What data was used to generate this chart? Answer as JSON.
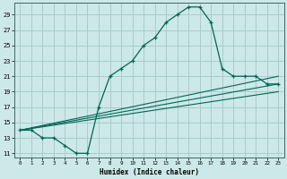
{
  "xlabel": "Humidex (Indice chaleur)",
  "bg_color": "#cce8e8",
  "grid_color": "#aacccc",
  "line_color": "#006655",
  "xlim": [
    -0.5,
    23.5
  ],
  "ylim": [
    10.5,
    30.5
  ],
  "xticks": [
    0,
    1,
    2,
    3,
    4,
    5,
    6,
    7,
    8,
    9,
    10,
    11,
    12,
    13,
    14,
    15,
    16,
    17,
    18,
    19,
    20,
    21,
    22,
    23
  ],
  "yticks": [
    11,
    13,
    15,
    17,
    19,
    21,
    23,
    25,
    27,
    29
  ],
  "main_x": [
    0,
    1,
    2,
    3,
    4,
    5,
    6,
    7,
    8,
    9,
    10,
    11,
    12,
    13,
    14,
    15,
    16,
    17,
    18,
    19,
    20,
    21,
    22,
    23
  ],
  "main_y": [
    14,
    14,
    13,
    13,
    12,
    11,
    11,
    17,
    21,
    22,
    23,
    25,
    26,
    28,
    29,
    30,
    30,
    28,
    22,
    21,
    21,
    21,
    20,
    20
  ],
  "line1_x": [
    0,
    23
  ],
  "line1_y": [
    14,
    19
  ],
  "line2_x": [
    0,
    23
  ],
  "line2_y": [
    14,
    20
  ],
  "line3_x": [
    0,
    23
  ],
  "line3_y": [
    14,
    21
  ]
}
